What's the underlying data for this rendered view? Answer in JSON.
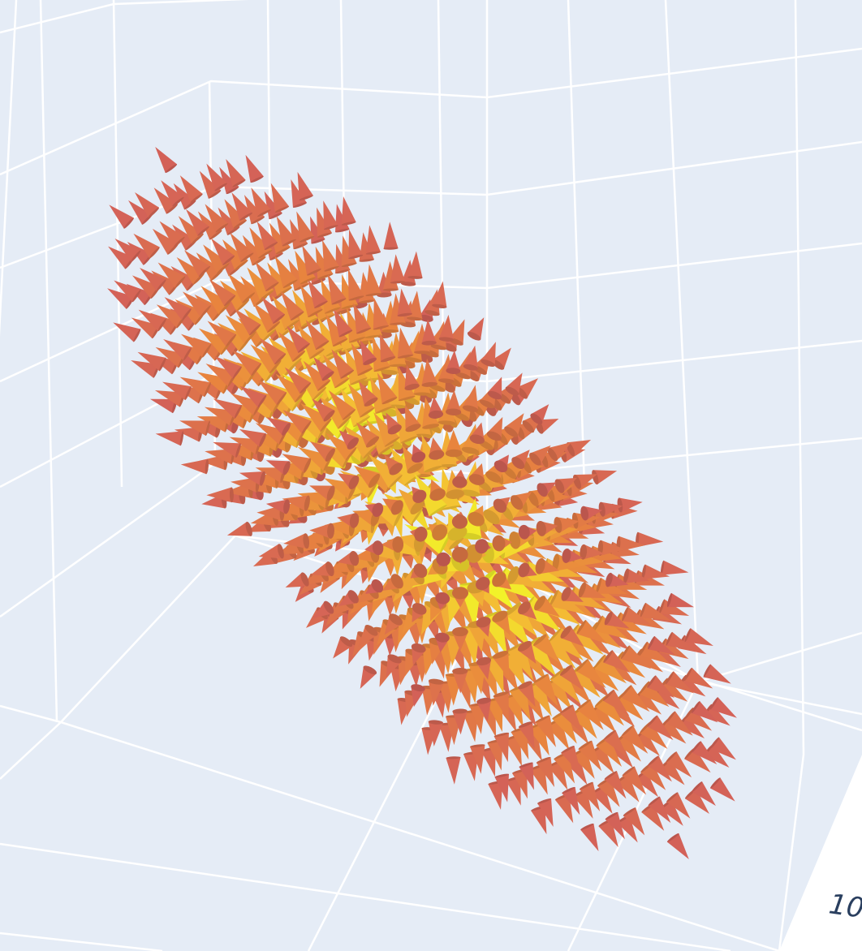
{
  "chart_data": {
    "type": "cone",
    "title": "",
    "xlabel": "",
    "ylabel": "",
    "zlabel": "",
    "grid": true,
    "colorscale": "plasma",
    "colorscale_stops": [
      "#7b16a0",
      "#a8327a",
      "#cf5a5e",
      "#e8843e",
      "#f4bc34",
      "#f2f229"
    ],
    "background_color": "#e5ecf6",
    "gridline_color": "#ffffff",
    "visible_tick_labels": [
      "10"
    ],
    "source_centers": [
      {
        "name": "",
        "x": 1.0,
        "y": 0.0,
        "z": 0.0
      },
      {
        "name": "",
        "x": -1.0,
        "y": 0.0,
        "z": 0.0
      }
    ],
    "grid_samples": {
      "x_range": [
        -3,
        3
      ],
      "y_range": [
        -3,
        3
      ],
      "z_range": [
        -3,
        3
      ],
      "step": 0.5
    }
  }
}
